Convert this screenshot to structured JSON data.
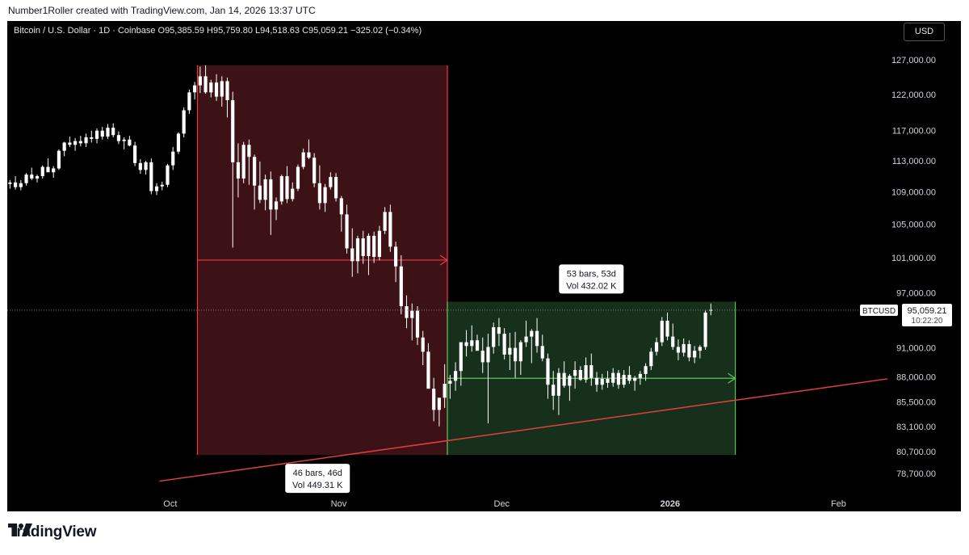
{
  "header": {
    "attribution": "Number1Roller created with TradingView.com, Jan 14, 2026 13:37 UTC"
  },
  "legend": {
    "text": "Bitcoin / U.S. Dollar · 1D · Coinbase  O95,385.59  H95,759.80  L94,518.63  C95,059.21  −325.02 (−0.34%)"
  },
  "currency_button": "USD",
  "footer": {
    "logo_text": "TradingView",
    "logo_icon": "tradingview-logo-icon"
  },
  "colors": {
    "background": "#000000",
    "candle": "#ffffff",
    "red_zone": "#3c1216",
    "red_line": "#f23645",
    "green_zone": "#17301b",
    "green_line": "#5dc55d",
    "trendline": "#e0413d"
  },
  "annotations": {
    "red_measure": {
      "bars_label": "46 bars, 46d",
      "vol_label": "Vol 449.31 K",
      "from_date": "2025-10-06",
      "to_date": "2025-11-21",
      "top": 126200,
      "bottom": 80400
    },
    "green_measure": {
      "bars_label": "53 bars, 53d",
      "vol_label": "Vol 432.02 K",
      "from_date": "2025-11-21",
      "to_date": "2026-01-13",
      "top": 96000,
      "bottom": 80400
    },
    "trendline": {
      "from_date": "2025-09-29",
      "from_price": 78000,
      "to_date": "2026-02-10",
      "to_price": 87800
    }
  },
  "price_tag": {
    "symbol": "BTCUSD",
    "price": "95,059.21",
    "countdown": "10:22:20",
    "value": 95059.21
  },
  "chart_data": {
    "type": "candlestick",
    "title": "Bitcoin / U.S. Dollar · 1D · Coinbase",
    "y_axis": {
      "scale": "log",
      "ticks": [
        127000,
        122000,
        117000,
        113000,
        109000,
        105000,
        101000,
        97000,
        91000,
        88000,
        85500,
        83100,
        80700,
        78700
      ],
      "tick_labels": [
        "127,000.00",
        "122,000.00",
        "117,000.00",
        "113,000.00",
        "109,000.00",
        "105,000.00",
        "101,000.00",
        "97,000.00",
        "91,000.00",
        "88,000.00",
        "85,500.00",
        "83,100.00",
        "80,700.00",
        "78,700.00"
      ]
    },
    "x_axis": {
      "range": [
        "2025-09-01",
        "2026-02-10"
      ],
      "ticks": [
        {
          "date": "2025-10-01",
          "label": "Oct"
        },
        {
          "date": "2025-11-01",
          "label": "Nov"
        },
        {
          "date": "2025-12-01",
          "label": "Dec"
        },
        {
          "date": "2026-01-01",
          "label": "2026"
        },
        {
          "date": "2026-02-01",
          "label": "Feb"
        }
      ]
    },
    "start_date": "2025-09-01",
    "candles_ohlc": [
      [
        110000,
        110500,
        109400,
        110200
      ],
      [
        110200,
        111000,
        109300,
        109600
      ],
      [
        109600,
        110500,
        109200,
        110100
      ],
      [
        110100,
        111400,
        109800,
        111200
      ],
      [
        111200,
        112100,
        110500,
        110700
      ],
      [
        110700,
        111200,
        110200,
        111000
      ],
      [
        111000,
        112400,
        110700,
        112200
      ],
      [
        112200,
        113300,
        111700,
        111500
      ],
      [
        111500,
        112300,
        110800,
        112000
      ],
      [
        112000,
        114500,
        111800,
        114300
      ],
      [
        114300,
        115500,
        113600,
        115400
      ],
      [
        115400,
        116200,
        114800,
        115100
      ],
      [
        115100,
        116000,
        114300,
        115600
      ],
      [
        115600,
        116300,
        114900,
        115300
      ],
      [
        115300,
        116600,
        114800,
        116100
      ],
      [
        116100,
        117000,
        115400,
        115900
      ],
      [
        115900,
        117300,
        115300,
        117000
      ],
      [
        117000,
        117500,
        115800,
        116200
      ],
      [
        116200,
        117900,
        115900,
        117400
      ],
      [
        117400,
        118000,
        116100,
        116400
      ],
      [
        116400,
        116900,
        115200,
        115600
      ],
      [
        115600,
        116100,
        114500,
        115800
      ],
      [
        115800,
        116300,
        114900,
        115000
      ],
      [
        115000,
        115500,
        112300,
        112700
      ],
      [
        112700,
        113200,
        111300,
        111800
      ],
      [
        111800,
        113000,
        111200,
        112800
      ],
      [
        112800,
        113300,
        108700,
        109100
      ],
      [
        109100,
        110100,
        108600,
        109700
      ],
      [
        109700,
        110300,
        109200,
        109900
      ],
      [
        109900,
        112600,
        109600,
        112400
      ],
      [
        112400,
        114800,
        111800,
        114200
      ],
      [
        114200,
        116800,
        113900,
        116600
      ],
      [
        116600,
        120200,
        116100,
        119800
      ],
      [
        119800,
        122700,
        119300,
        122300
      ],
      [
        122300,
        123800,
        121300,
        123300
      ],
      [
        123300,
        126000,
        122200,
        124600
      ],
      [
        124600,
        126200,
        122100,
        122300
      ],
      [
        122300,
        124100,
        121600,
        123700
      ],
      [
        123700,
        124900,
        121100,
        121700
      ],
      [
        121700,
        124600,
        120300,
        123900
      ],
      [
        123900,
        124400,
        118800,
        121200
      ],
      [
        121200,
        122400,
        102200,
        112800
      ],
      [
        112800,
        115300,
        108300,
        110700
      ],
      [
        110700,
        115500,
        110100,
        115100
      ],
      [
        115100,
        115800,
        109900,
        113500
      ],
      [
        113500,
        113800,
        106800,
        109800
      ],
      [
        109800,
        112900,
        107600,
        108000
      ],
      [
        108000,
        111200,
        106700,
        110600
      ],
      [
        110600,
        111600,
        103700,
        106800
      ],
      [
        106800,
        108300,
        105500,
        107800
      ],
      [
        107800,
        111200,
        107400,
        111000
      ],
      [
        111000,
        112300,
        107600,
        108100
      ],
      [
        108100,
        110200,
        107800,
        109400
      ],
      [
        109400,
        112500,
        109100,
        112200
      ],
      [
        112200,
        114600,
        111900,
        114100
      ],
      [
        114100,
        115800,
        113200,
        113400
      ],
      [
        113400,
        114000,
        109600,
        110100
      ],
      [
        110100,
        112400,
        106800,
        107600
      ],
      [
        107600,
        110000,
        106500,
        109600
      ],
      [
        109600,
        111500,
        109300,
        110900
      ],
      [
        110900,
        111400,
        107800,
        108200
      ],
      [
        108200,
        108500,
        104100,
        106200
      ],
      [
        106200,
        107400,
        101500,
        102100
      ],
      [
        102100,
        104500,
        98800,
        100600
      ],
      [
        100600,
        103600,
        99200,
        103300
      ],
      [
        103300,
        104200,
        100300,
        101200
      ],
      [
        101200,
        103900,
        99000,
        103600
      ],
      [
        103600,
        104100,
        100400,
        101100
      ],
      [
        101100,
        104800,
        100700,
        104200
      ],
      [
        104200,
        107100,
        103800,
        106500
      ],
      [
        106500,
        107400,
        101700,
        102300
      ],
      [
        102300,
        102900,
        98200,
        100000
      ],
      [
        100000,
        101300,
        94600,
        95500
      ],
      [
        95500,
        96700,
        93100,
        94200
      ],
      [
        94200,
        95800,
        91800,
        95000
      ],
      [
        95000,
        95500,
        91300,
        92100
      ],
      [
        92100,
        92800,
        89200,
        90600
      ],
      [
        90600,
        91500,
        87300,
        86800
      ],
      [
        86800,
        87900,
        83600,
        84700
      ],
      [
        84700,
        85500,
        83100,
        85900
      ],
      [
        85900,
        89300,
        84900,
        87300
      ],
      [
        87300,
        88200,
        85800,
        87600
      ],
      [
        87600,
        89500,
        86600,
        88600
      ],
      [
        88600,
        89900,
        87100,
        91600
      ],
      [
        91600,
        92900,
        90100,
        91200
      ],
      [
        91200,
        93400,
        90600,
        91800
      ],
      [
        91800,
        92400,
        90700,
        90700
      ],
      [
        90700,
        92100,
        88400,
        89500
      ],
      [
        89500,
        92500,
        83400,
        91100
      ],
      [
        91100,
        93700,
        90400,
        93200
      ],
      [
        93200,
        94200,
        91200,
        92500
      ],
      [
        92500,
        93100,
        89800,
        90300
      ],
      [
        90300,
        92600,
        88700,
        91000
      ],
      [
        91000,
        92700,
        87900,
        89600
      ],
      [
        89600,
        91800,
        88200,
        91600
      ],
      [
        91600,
        93900,
        91100,
        92200
      ],
      [
        92200,
        93000,
        89400,
        92800
      ],
      [
        92800,
        94200,
        90500,
        91200
      ],
      [
        91200,
        92400,
        89600,
        89900
      ],
      [
        89900,
        90400,
        85800,
        87200
      ],
      [
        87200,
        88600,
        84700,
        86100
      ],
      [
        86100,
        88900,
        84200,
        88400
      ],
      [
        88400,
        89600,
        86900,
        87100
      ],
      [
        87100,
        88300,
        85600,
        88100
      ],
      [
        88100,
        89600,
        86800,
        88700
      ],
      [
        88700,
        89100,
        87600,
        87700
      ],
      [
        87700,
        90000,
        87400,
        89200
      ],
      [
        89200,
        90400,
        87100,
        87900
      ],
      [
        87900,
        88500,
        86500,
        87200
      ],
      [
        87200,
        88300,
        86700,
        87800
      ],
      [
        87800,
        88600,
        86900,
        87400
      ],
      [
        87400,
        88900,
        87000,
        88400
      ],
      [
        88400,
        88700,
        86800,
        87200
      ],
      [
        87200,
        88700,
        86900,
        88200
      ],
      [
        88200,
        89100,
        87300,
        87600
      ],
      [
        87600,
        88100,
        86600,
        87900
      ],
      [
        87900,
        88600,
        87200,
        88300
      ],
      [
        88300,
        89400,
        87600,
        89100
      ],
      [
        89100,
        91000,
        88700,
        90600
      ],
      [
        90600,
        92100,
        90200,
        91600
      ],
      [
        91600,
        94300,
        91200,
        93900
      ],
      [
        93900,
        94800,
        91800,
        92200
      ],
      [
        92200,
        93600,
        90800,
        91100
      ],
      [
        91100,
        91900,
        89700,
        90500
      ],
      [
        90500,
        92000,
        90100,
        91400
      ],
      [
        91400,
        91800,
        89600,
        90000
      ],
      [
        90000,
        91200,
        89400,
        90700
      ],
      [
        90700,
        91300,
        89900,
        91100
      ],
      [
        91100,
        95100,
        90800,
        94800
      ],
      [
        95000,
        95800,
        94500,
        95100
      ]
    ]
  }
}
